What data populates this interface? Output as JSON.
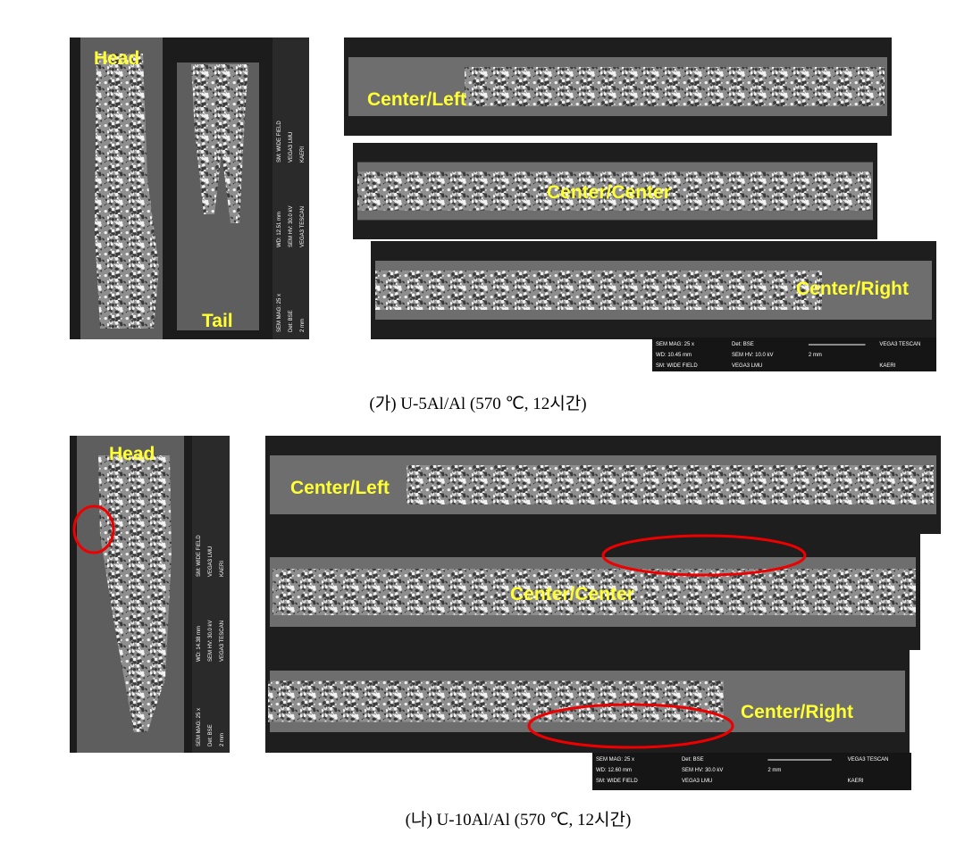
{
  "figure_a": {
    "labels": [
      "Head",
      "Tail",
      "Center/Left",
      "Center/Center",
      "Center/Right"
    ],
    "side_info": [
      "SEM MAG: 25 x",
      "WD: 12.51 mm",
      "SM: WIDE FIELD",
      "Det: BSE",
      "SEM HV: 30.0 kV",
      "VEGA3 LMU",
      "2 mm",
      "VEGA3 TESCAN",
      "KAERI"
    ],
    "scale_info": [
      "SEM MAG: 25 x",
      "Det: BSE",
      "VEGA3 TESCAN",
      "WD: 10.45 mm",
      "SEM HV: 10.0 kV",
      "2 mm",
      "SM: WIDE FIELD",
      "VEGA3 LMU",
      "KAERI"
    ],
    "caption": "(가) U-5Al/Al (570 ℃, 12시간)"
  },
  "figure_b": {
    "labels": [
      "Head",
      "Center/Left",
      "Center/Center",
      "Center/Right"
    ],
    "side_info": [
      "SEM MAG: 25 x",
      "WD: 14.38 mm",
      "SM: WIDE FIELD",
      "Det: BSE",
      "SEM HV: 30.0 kV",
      "VEGA3 LMU",
      "2 mm",
      "VEGA3 TESCAN",
      "KAERI"
    ],
    "scale_info": [
      "SEM MAG: 25 x",
      "Det: BSE",
      "VEGA3 TESCAN",
      "WD: 12.60 mm",
      "SEM HV: 30.0 kV",
      "2 mm",
      "SM: WIDE FIELD",
      "VEGA3 LMU",
      "KAERI"
    ],
    "caption": "(나) U-10Al/Al (570 ℃, 12시간)"
  }
}
